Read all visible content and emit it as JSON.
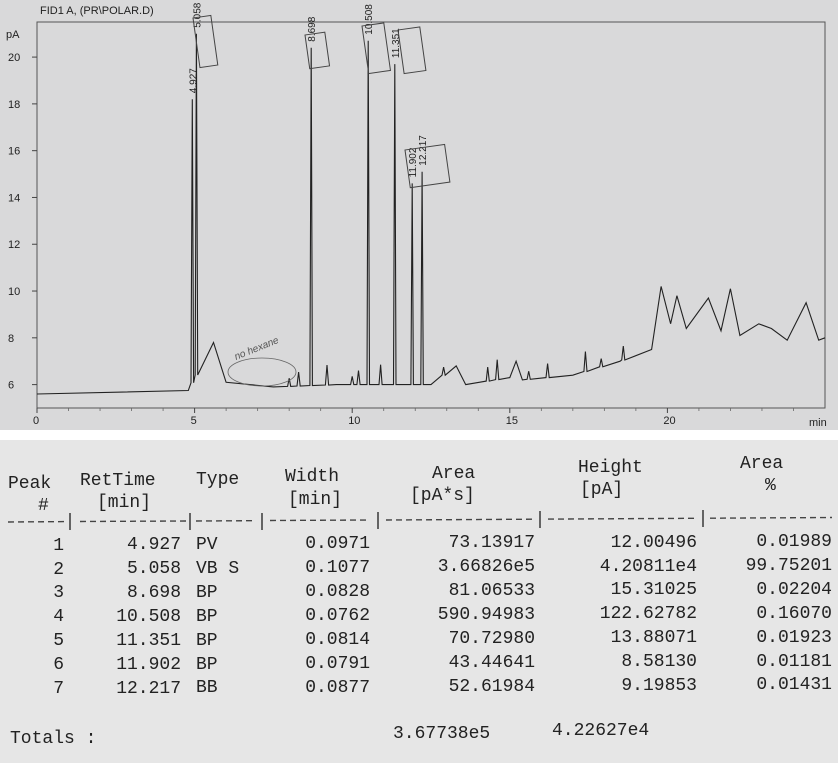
{
  "chromatogram": {
    "title": "FID1 A, (PR\\POLAR.D)",
    "y_unit": "pA",
    "x_unit": "min",
    "y_ticks": [
      "6",
      "8",
      "10",
      "12",
      "14",
      "16",
      "18",
      "20"
    ],
    "x_ticks": [
      "0",
      "5",
      "10",
      "15",
      "20"
    ],
    "peak_labels": [
      "4.927",
      "5.058",
      "8.698",
      "10.508",
      "11.351",
      "11.902",
      "12.217"
    ],
    "handwritten_note": "no hexane"
  },
  "chart_data": {
    "type": "line",
    "title": "FID1 A, (PR\\POLAR.D)",
    "xlabel": "min",
    "ylabel": "pA",
    "xlim": [
      0,
      25
    ],
    "ylim": [
      5,
      21.5
    ],
    "x_ticks": [
      0,
      5,
      10,
      15,
      20
    ],
    "y_ticks": [
      6,
      8,
      10,
      12,
      14,
      16,
      18,
      20
    ],
    "peaks": [
      {
        "rt": 4.927,
        "height": 18.2
      },
      {
        "rt": 5.058,
        "height": 21.0
      },
      {
        "rt": 8.698,
        "height": 20.4
      },
      {
        "rt": 10.508,
        "height": 20.7
      },
      {
        "rt": 11.351,
        "height": 19.7
      },
      {
        "rt": 11.902,
        "height": 14.6
      },
      {
        "rt": 12.217,
        "height": 15.1
      }
    ],
    "baseline": [
      [
        0,
        5.6
      ],
      [
        4.8,
        5.75
      ],
      [
        5.6,
        7.8
      ],
      [
        6.0,
        6.1
      ],
      [
        7.5,
        5.9
      ],
      [
        9.5,
        6.0
      ],
      [
        12.5,
        6.0
      ],
      [
        13.3,
        6.8
      ],
      [
        13.6,
        6.0
      ],
      [
        15.0,
        6.3
      ],
      [
        15.2,
        7.0
      ],
      [
        15.4,
        6.2
      ],
      [
        17.0,
        6.4
      ],
      [
        18.5,
        7.0
      ],
      [
        19.5,
        7.5
      ],
      [
        19.8,
        10.2
      ],
      [
        20.1,
        8.6
      ],
      [
        20.3,
        9.8
      ],
      [
        20.6,
        8.4
      ],
      [
        21.3,
        9.7
      ],
      [
        21.7,
        8.3
      ],
      [
        22.0,
        10.1
      ],
      [
        22.3,
        8.1
      ],
      [
        22.9,
        8.6
      ],
      [
        23.3,
        8.4
      ],
      [
        23.8,
        7.9
      ],
      [
        24.4,
        9.5
      ],
      [
        24.8,
        7.9
      ],
      [
        25,
        8.0
      ]
    ]
  },
  "report": {
    "headers": {
      "peak_line1": "Peak",
      "peak_line2": "#",
      "rettime_line1": "RetTime",
      "rettime_line2": "[min]",
      "type_line1": "Type",
      "width_line1": "Width",
      "width_line2": "[min]",
      "area_line1": "Area",
      "area_line2": "[pA*s]",
      "height_line1": "Height",
      "height_line2": "[pA]",
      "areapct_line1": "Area",
      "areapct_line2": "%"
    },
    "separator": "----|-------|----|-------|----------|----------|--------|",
    "rows": [
      {
        "peak": "1",
        "rettime": "4.927",
        "type": "PV",
        "width": "0.0971",
        "area": "73.13917",
        "height": "12.00496",
        "area_pct": "0.01989"
      },
      {
        "peak": "2",
        "rettime": "5.058",
        "type": "VB S",
        "width": "0.1077",
        "area": "3.66826e5",
        "height": "4.20811e4",
        "area_pct": "99.75201"
      },
      {
        "peak": "3",
        "rettime": "8.698",
        "type": "BP",
        "width": "0.0828",
        "area": "81.06533",
        "height": "15.31025",
        "area_pct": "0.02204"
      },
      {
        "peak": "4",
        "rettime": "10.508",
        "type": "BP",
        "width": "0.0762",
        "area": "590.94983",
        "height": "122.62782",
        "area_pct": "0.16070"
      },
      {
        "peak": "5",
        "rettime": "11.351",
        "type": "BP",
        "width": "0.0814",
        "area": "70.72980",
        "height": "13.88071",
        "area_pct": "0.01923"
      },
      {
        "peak": "6",
        "rettime": "11.902",
        "type": "BP",
        "width": "0.0791",
        "area": "43.44641",
        "height": "8.58130",
        "area_pct": "0.01181"
      },
      {
        "peak": "7",
        "rettime": "12.217",
        "type": "BB",
        "width": "0.0877",
        "area": "52.61984",
        "height": "9.19853",
        "area_pct": "0.01431"
      }
    ],
    "totals_label": "Totals :",
    "total_area": "3.67738e5",
    "total_height": "4.22627e4"
  }
}
